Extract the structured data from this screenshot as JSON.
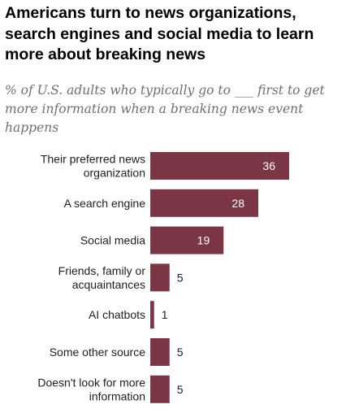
{
  "title": "Americans turn to news organizations, search engines and social media to learn more about breaking news",
  "subtitle": "% of U.S. adults who typically go to ___ first to get more information when a breaking news event happens",
  "colors": {
    "bar": "#7b3645",
    "label_inside": "#ffffff",
    "label_outside": "#1e1e1e"
  },
  "chart_data": {
    "type": "bar",
    "orientation": "horizontal",
    "categories": [
      "Their preferred news organization",
      "A search engine",
      "Social media",
      "Friends, family or acquaintances",
      "AI chatbots",
      "Some other source",
      "Doesn't look for more information"
    ],
    "category_lines": [
      [
        "Their preferred news",
        "organization"
      ],
      [
        "A search engine"
      ],
      [
        "Social media"
      ],
      [
        "Friends, family or",
        "acquaintances"
      ],
      [
        "AI chatbots"
      ],
      [
        "Some other source"
      ],
      [
        "Doesn't look for more",
        "information"
      ]
    ],
    "values": [
      36,
      28,
      19,
      5,
      1,
      5,
      5
    ],
    "value_labels": [
      "36",
      "28",
      "19",
      "5",
      "1",
      "5",
      "5"
    ],
    "xlim": [
      0,
      36
    ],
    "grid": false,
    "legend": "none"
  }
}
